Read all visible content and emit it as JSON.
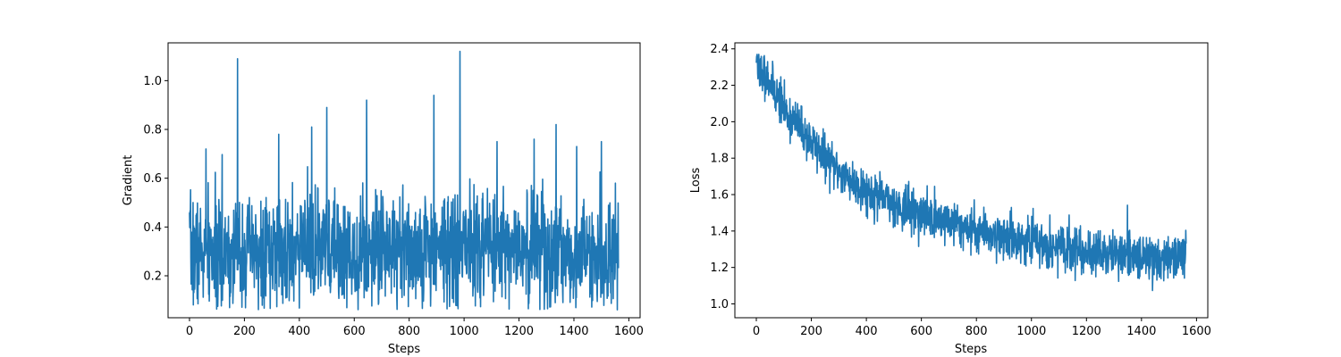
{
  "chart_data": [
    {
      "type": "line",
      "xlabel": "Steps",
      "ylabel": "Gradient",
      "xlim": [
        -78,
        1641
      ],
      "ylim": [
        0.028,
        1.155
      ],
      "xticks": [
        0,
        200,
        400,
        600,
        800,
        1000,
        1200,
        1400,
        1600
      ],
      "xtick_labels": [
        "0",
        "200",
        "400",
        "600",
        "800",
        "1000",
        "1200",
        "1400",
        "1600"
      ],
      "yticks": [
        0.2,
        0.4,
        0.6,
        0.8,
        1.0
      ],
      "ytick_labels": [
        "0.2",
        "0.4",
        "0.6",
        "0.8",
        "1.0"
      ],
      "grid": false,
      "color": "#1f77b4",
      "n_points": 1563,
      "noise_seed": 7,
      "anchors": {
        "x": [
          0,
          100,
          200,
          300,
          400,
          500,
          600,
          700,
          800,
          900,
          1000,
          1100,
          1200,
          1300,
          1400,
          1500,
          1562
        ],
        "y": [
          0.3,
          0.28,
          0.3,
          0.3,
          0.31,
          0.3,
          0.3,
          0.31,
          0.31,
          0.32,
          0.32,
          0.31,
          0.3,
          0.3,
          0.29,
          0.29,
          0.3
        ]
      },
      "noise_sd": 0.11,
      "clip": [
        0.06,
        0.76
      ],
      "spikes": [
        {
          "x": 175,
          "y": 1.09
        },
        {
          "x": 985,
          "y": 1.12
        },
        {
          "x": 890,
          "y": 0.94
        },
        {
          "x": 645,
          "y": 0.92
        },
        {
          "x": 500,
          "y": 0.89
        },
        {
          "x": 445,
          "y": 0.81
        },
        {
          "x": 1335,
          "y": 0.82
        },
        {
          "x": 325,
          "y": 0.78
        },
        {
          "x": 1500,
          "y": 0.75
        },
        {
          "x": 60,
          "y": 0.72
        },
        {
          "x": 1410,
          "y": 0.73
        },
        {
          "x": 1255,
          "y": 0.76
        },
        {
          "x": 1120,
          "y": 0.75
        }
      ]
    },
    {
      "type": "line",
      "xlabel": "Steps",
      "ylabel": "Loss",
      "xlim": [
        -78,
        1641
      ],
      "ylim": [
        0.924,
        2.433
      ],
      "xticks": [
        0,
        200,
        400,
        600,
        800,
        1000,
        1200,
        1400,
        1600
      ],
      "xtick_labels": [
        "0",
        "200",
        "400",
        "600",
        "800",
        "1000",
        "1200",
        "1400",
        "1600"
      ],
      "yticks": [
        1.0,
        1.2,
        1.4,
        1.6,
        1.8,
        2.0,
        2.2,
        2.4
      ],
      "ytick_labels": [
        "1.0",
        "1.2",
        "1.4",
        "1.6",
        "1.8",
        "2.0",
        "2.2",
        "2.4"
      ],
      "grid": false,
      "color": "#1f77b4",
      "n_points": 1563,
      "noise_seed": 11,
      "anchors": {
        "x": [
          0,
          10,
          50,
          100,
          150,
          200,
          250,
          300,
          350,
          400,
          500,
          600,
          700,
          800,
          900,
          1000,
          1100,
          1200,
          1300,
          1400,
          1500,
          1562
        ],
        "y": [
          2.34,
          2.31,
          2.22,
          2.07,
          1.98,
          1.89,
          1.8,
          1.73,
          1.67,
          1.62,
          1.55,
          1.49,
          1.45,
          1.41,
          1.37,
          1.34,
          1.31,
          1.29,
          1.27,
          1.26,
          1.25,
          1.25
        ]
      },
      "noise_sd": 0.06,
      "clip": [
        0.99,
        2.37
      ],
      "spikes": []
    }
  ]
}
